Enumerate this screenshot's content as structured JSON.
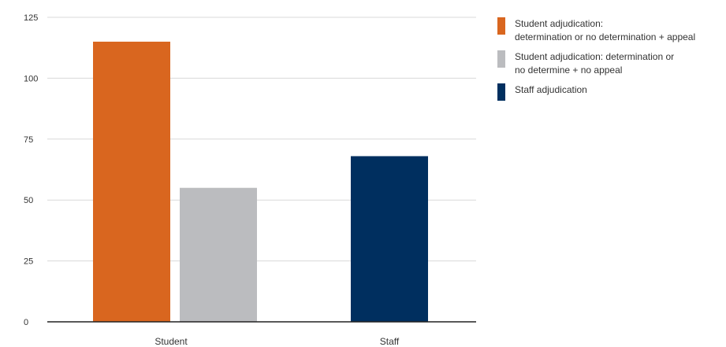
{
  "chart_data": {
    "type": "bar",
    "categories": [
      "Student",
      "Staff"
    ],
    "series": [
      {
        "name": "Student adjudication:\ndetermination or no determination + appeal",
        "color": "#d9661f",
        "values": [
          115,
          null
        ]
      },
      {
        "name": "Student adjudication: determination or\nno determine + no appeal",
        "color": "#bbbcbf",
        "values": [
          55,
          null
        ]
      },
      {
        "name": "Staff adjudication",
        "color": "#002f5f",
        "values": [
          null,
          68
        ]
      }
    ],
    "yticks": [
      0,
      25,
      50,
      75,
      100,
      125
    ],
    "ylim": [
      0,
      125
    ],
    "title": "",
    "xlabel": "",
    "ylabel": "",
    "grid": true,
    "legend_position": "right"
  }
}
